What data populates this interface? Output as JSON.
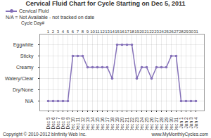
{
  "chart_data": {
    "type": "line",
    "title": "Cervical Fluid Chart for Cycle Starting on Dec 5, 2011",
    "note": "N/A = Not Available - not tracked on date",
    "x2_label": "Cycle Day#",
    "x2ticks": [
      1,
      2,
      3,
      4,
      5,
      6,
      7,
      8,
      9,
      10,
      11,
      12,
      13,
      14,
      15,
      16,
      17,
      18,
      19,
      20,
      21,
      22,
      23,
      24,
      25,
      26,
      27,
      28,
      29,
      30,
      31
    ],
    "categories": [
      "Dec 5",
      "Dec 6",
      "Dec 7",
      "Dec 8",
      "Dec 9",
      "Dec 10",
      "Dec 11",
      "Dec 12",
      "Dec 13",
      "Dec 14",
      "Dec 15",
      "Dec 16",
      "Dec 17",
      "Dec 18",
      "Dec 19",
      "Dec 20",
      "Dec 21",
      "Dec 22",
      "Dec 23",
      "Dec 24",
      "Dec 25",
      "Dec 26",
      "Dec 27",
      "Dec 28",
      "Dec 29",
      "Dec 30",
      "Dec 31",
      "Jan 1",
      "Jan 2",
      "Jan 3",
      "Jan 4"
    ],
    "y_categories": [
      "Eggwhite",
      "Sticky",
      "Creamy",
      "Watery/Clear",
      "Dry/None",
      "N/A"
    ],
    "series": [
      {
        "name": "Cervical Fluid",
        "color": "#8470b8",
        "marker": "circle",
        "values": [
          "N/A",
          "N/A",
          "N/A",
          "N/A",
          "N/A",
          "Sticky",
          "Sticky",
          "Sticky",
          "Creamy",
          "Creamy",
          "Creamy",
          "Creamy",
          "Creamy",
          "Watery/Clear",
          "Eggwhite",
          "Eggwhite",
          "Eggwhite",
          "Eggwhite",
          "Watery/Clear",
          "Creamy",
          "Creamy",
          "Watery/Clear",
          "Creamy",
          "Creamy",
          "Creamy",
          "Sticky",
          "Sticky",
          "N/A",
          "N/A",
          "N/A",
          "N/A"
        ]
      }
    ],
    "grid": true,
    "legend": "top-left",
    "copyright": "Copyright © 2010-2012 bInfinity Web Inc.",
    "website": "www.MyMonthlyCycles.com"
  }
}
